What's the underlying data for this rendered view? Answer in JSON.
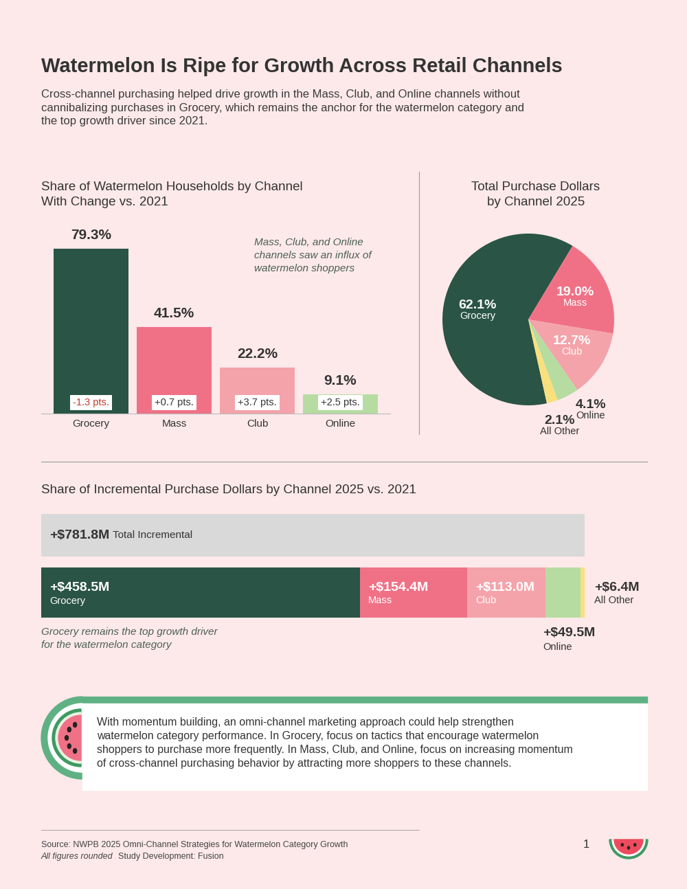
{
  "title": "Watermelon Is Ripe for Growth Across Retail Channels",
  "subtitle": "Cross-channel purchasing helped drive growth in the Mass, Club, and Online channels without\ncannibalizing purchases in Grocery, which remains the anchor for the watermelon category and\nthe top growth driver since 2021.",
  "chart_data": [
    {
      "type": "bar",
      "title": "Share of Watermelon Households by Channel\nWith Change vs. 2021",
      "categories": [
        "Grocery",
        "Mass",
        "Club",
        "Online"
      ],
      "values": [
        79.3,
        41.5,
        22.2,
        9.1
      ],
      "value_labels": [
        "79.3%",
        "41.5%",
        "22.2%",
        "9.1%"
      ],
      "colors": [
        "#2a5445",
        "#f07186",
        "#f4a3aa",
        "#b6dca1"
      ],
      "change": [
        -1.3,
        0.7,
        3.7,
        2.5
      ],
      "change_labels": [
        "-1.3 pts.",
        "+0.7 pts.",
        "+3.7 pts.",
        "+2.5 pts."
      ],
      "annotation": "Mass, Club, and Online\nchannels saw an influx of\nwatermelon shoppers",
      "ylim": [
        0,
        100
      ],
      "data_labels": true,
      "tick_labels": "x"
    },
    {
      "type": "pie",
      "title": "Total Purchase Dollars\nby Channel 2025",
      "categories": [
        "Grocery",
        "Mass",
        "Club",
        "Online",
        "All Other"
      ],
      "values": [
        62.1,
        19.0,
        12.7,
        4.1,
        2.1
      ],
      "value_labels": [
        "62.1%",
        "19.0%",
        "12.7%",
        "4.1%",
        "2.1%"
      ],
      "colors": [
        "#2a5445",
        "#f07186",
        "#f4a3aa",
        "#b6dca1",
        "#f9e07d"
      ],
      "data_labels": true
    },
    {
      "type": "bar",
      "orientation": "horizontal",
      "stacked": true,
      "title": "Share of Incremental Purchase Dollars by Channel 2025 vs. 2021",
      "total": {
        "name": "Total Incremental",
        "value": 781.8,
        "value_label": "+$781.8M",
        "color": "#d9d9d9"
      },
      "series": [
        {
          "name": "Grocery",
          "color": "#2a5445",
          "values": [
            458.5
          ],
          "value_labels": [
            "+$458.5M"
          ]
        },
        {
          "name": "Mass",
          "color": "#f07186",
          "values": [
            154.4
          ],
          "value_labels": [
            "+$154.4M"
          ]
        },
        {
          "name": "Club",
          "color": "#f4a3aa",
          "values": [
            113.0
          ],
          "value_labels": [
            "+$113.0M"
          ]
        },
        {
          "name": "Online",
          "color": "#b6dca1",
          "values": [
            49.5
          ],
          "value_labels": [
            "+$49.5M"
          ]
        },
        {
          "name": "All Other",
          "color": "#f9e07d",
          "values": [
            6.4
          ],
          "value_labels": [
            "+$6.4M"
          ]
        }
      ],
      "annotation": "Grocery remains the top growth driver\nfor the watermelon category",
      "xlim": [
        0,
        781.8
      ],
      "data_labels": true,
      "tick_labels": false
    }
  ],
  "callout": "With momentum building, an omni-channel marketing approach could help strengthen\nwatermelon category performance. In Grocery, focus on tactics that encourage watermelon\nshoppers to purchase more frequently. In Mass, Club, and Online, focus on increasing momentum\nof cross-channel purchasing behavior by attracting more shoppers to these channels.",
  "footer": {
    "source": "Source: NWPB 2025 Omni-Channel Strategies for Watermelon Category Growth",
    "note": "All figures rounded",
    "credit": "Study Development: Fusion",
    "page_number": 1
  }
}
